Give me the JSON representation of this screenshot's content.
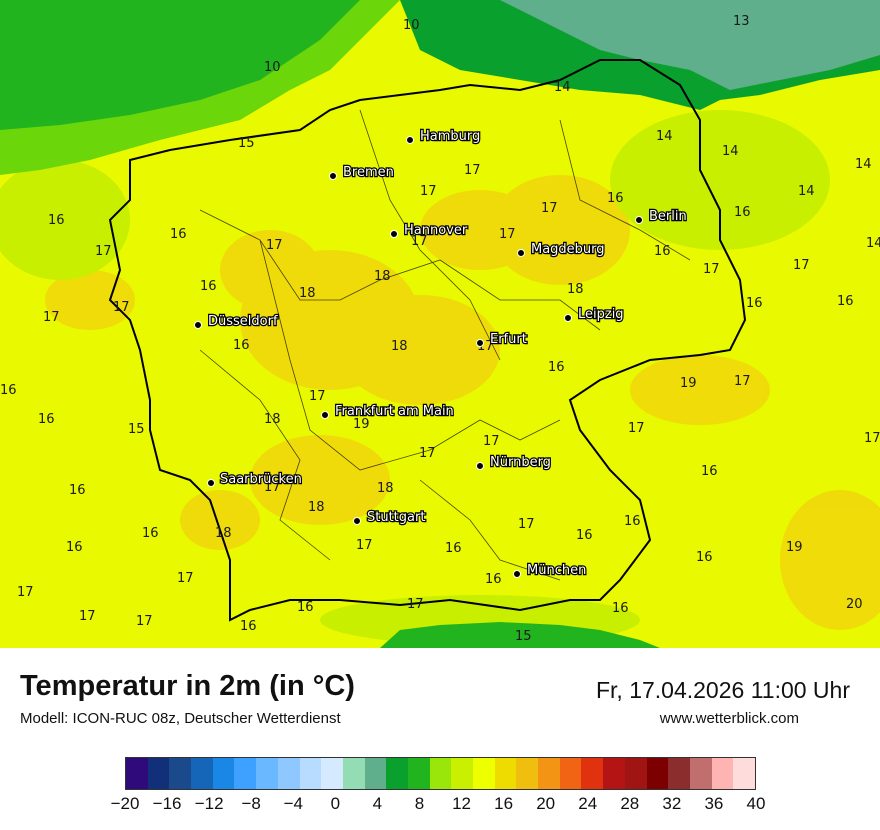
{
  "map": {
    "cities": [
      {
        "name": "Hamburg"
      },
      {
        "name": "Bremen"
      },
      {
        "name": "Hannover"
      },
      {
        "name": "Berlin"
      },
      {
        "name": "Magdeburg"
      },
      {
        "name": "Düsseldorf"
      },
      {
        "name": "Leipzig"
      },
      {
        "name": "Erfurt"
      },
      {
        "name": "Frankfurt am Main"
      },
      {
        "name": "Nürnberg"
      },
      {
        "name": "Saarbrücken"
      },
      {
        "name": "Stuttgart"
      },
      {
        "name": "München"
      }
    ],
    "temperature_labels": [
      "13",
      "10",
      "10",
      "15",
      "14",
      "14",
      "14",
      "14",
      "14",
      "14",
      "16",
      "17",
      "17",
      "16",
      "17",
      "16",
      "16",
      "17",
      "17",
      "17",
      "16",
      "18",
      "18",
      "17",
      "17",
      "17",
      "16",
      "16",
      "17",
      "16",
      "18",
      "18",
      "17",
      "16",
      "16",
      "16",
      "17",
      "19",
      "17",
      "17",
      "18",
      "19",
      "17",
      "17",
      "15",
      "17",
      "16",
      "17",
      "16",
      "16",
      "18",
      "18",
      "18",
      "17",
      "17",
      "16",
      "17",
      "16",
      "16",
      "16",
      "16",
      "16",
      "19",
      "17",
      "17",
      "17",
      "17",
      "16",
      "15",
      "16",
      "20",
      "16",
      "17",
      "16"
    ],
    "colors": {
      "sea_green": "#22b41e",
      "sea_cool": "#0aa02e",
      "sea_cold": "#5fae8c",
      "land_warm": "#eeff00",
      "land_warmer": "#eedc00"
    }
  },
  "footer": {
    "title": "Temperatur in 2m (in °C)",
    "model": "Modell: ICON-RUC 08z, Deutscher Wetterdienst",
    "datetime": "Fr, 17.04.2026 11:00 Uhr",
    "website": "www.wetterblick.com"
  },
  "legend": {
    "colors": [
      "#2e0a7a",
      "#12307a",
      "#1a4a8c",
      "#1566b8",
      "#1a86e6",
      "#3ea0ff",
      "#6ab8ff",
      "#8ec8ff",
      "#b8dcff",
      "#d6eaff",
      "#94dcb4",
      "#5fae8c",
      "#0aa02e",
      "#22b41e",
      "#9be60a",
      "#c9f000",
      "#eeff00",
      "#eedc00",
      "#f0be0f",
      "#f39414",
      "#f06414",
      "#e1320f",
      "#b41414",
      "#a01414",
      "#7d0000",
      "#8c2d2d",
      "#c06e6e",
      "#ffb4b4",
      "#ffdcdc"
    ],
    "ticks": [
      "−20",
      "−16",
      "−12",
      "−8",
      "−4",
      "0",
      "4",
      "8",
      "12",
      "16",
      "20",
      "24",
      "28",
      "32",
      "36",
      "40"
    ],
    "min": -20,
    "max": 40
  }
}
